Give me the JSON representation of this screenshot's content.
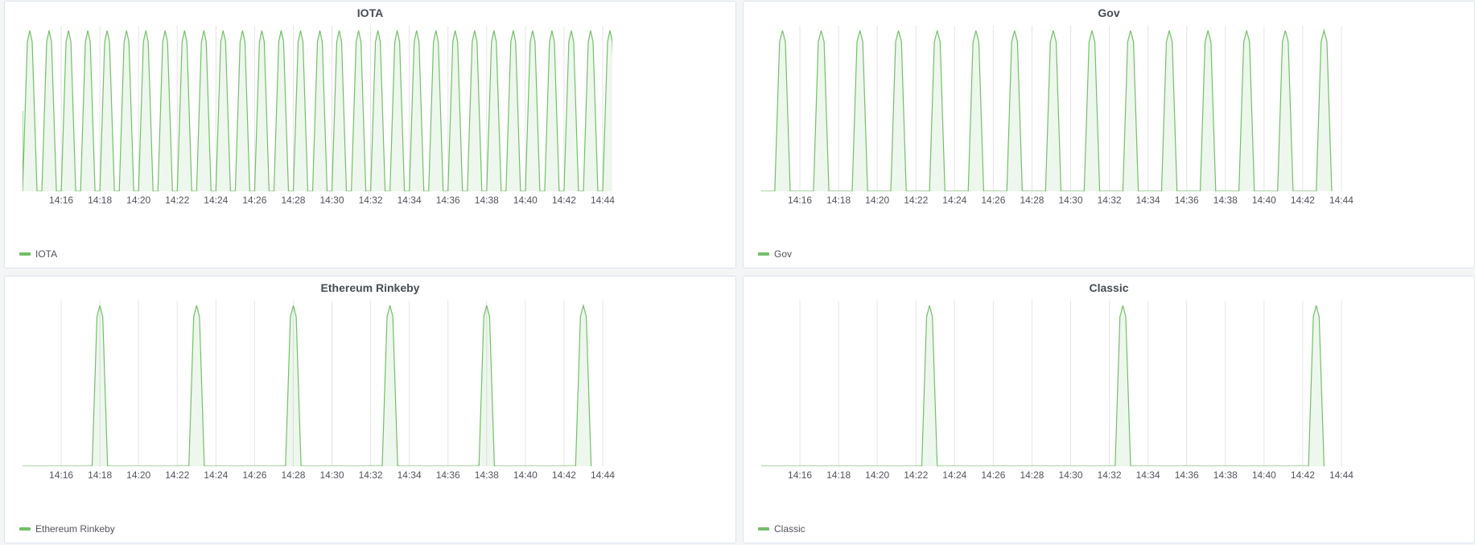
{
  "theme": {
    "series_color": "#73bf69",
    "fill_color": "#73bf69",
    "grid_color": "#e4e4e4"
  },
  "chart_data": [
    {
      "type": "area",
      "title": "IOTA",
      "legend": "IOTA",
      "legend_position": "bottom-left",
      "grid": true,
      "x_ticks": [
        "14:16",
        "14:18",
        "14:20",
        "14:22",
        "14:24",
        "14:26",
        "14:28",
        "14:30",
        "14:32",
        "14:34",
        "14:36",
        "14:38",
        "14:40",
        "14:42",
        "14:44"
      ],
      "xlim_minutes": [
        14.5,
        44.5
      ],
      "pulse": {
        "first_rise_minute": 14.0,
        "period_minutes": 1.0,
        "plateau_minutes": 0.25,
        "ramp_minutes": 0.25,
        "initial_level": 0.5
      },
      "ylim": [
        0,
        1
      ]
    },
    {
      "type": "area",
      "title": "Gov",
      "legend": "Gov",
      "legend_position": "bottom-left",
      "grid": true,
      "x_ticks": [
        "14:16",
        "14:18",
        "14:20",
        "14:22",
        "14:24",
        "14:26",
        "14:28",
        "14:30",
        "14:32",
        "14:34",
        "14:36",
        "14:38",
        "14:40",
        "14:42",
        "14:44"
      ],
      "xlim_minutes": [
        14.5,
        44.5
      ],
      "pulse": {
        "first_rise_minute": 14.7,
        "period_minutes": 2.0,
        "plateau_minutes": 0.3,
        "ramp_minutes": 0.25,
        "initial_level": 0
      },
      "ylim": [
        0,
        1
      ]
    },
    {
      "type": "area",
      "title": "Ethereum Rinkeby",
      "legend": "Ethereum Rinkeby",
      "legend_position": "bottom-left",
      "grid": true,
      "x_ticks": [
        "14:16",
        "14:18",
        "14:20",
        "14:22",
        "14:24",
        "14:26",
        "14:28",
        "14:30",
        "14:32",
        "14:34",
        "14:36",
        "14:38",
        "14:40",
        "14:42",
        "14:44"
      ],
      "xlim_minutes": [
        14.5,
        44.5
      ],
      "pulse": {
        "first_rise_minute": 17.6,
        "period_minutes": 5.0,
        "plateau_minutes": 0.3,
        "ramp_minutes": 0.25,
        "initial_level": 0
      },
      "ylim": [
        0,
        1
      ]
    },
    {
      "type": "area",
      "title": "Classic",
      "legend": "Classic",
      "legend_position": "bottom-left",
      "grid": true,
      "x_ticks": [
        "14:16",
        "14:18",
        "14:20",
        "14:22",
        "14:24",
        "14:26",
        "14:28",
        "14:30",
        "14:32",
        "14:34",
        "14:36",
        "14:38",
        "14:40",
        "14:42",
        "14:44"
      ],
      "xlim_minutes": [
        14.5,
        44.5
      ],
      "pulse": {
        "first_rise_minute": 22.3,
        "period_minutes": 10.0,
        "plateau_minutes": 0.3,
        "ramp_minutes": 0.25,
        "initial_level": 0
      },
      "ylim": [
        0,
        1
      ]
    }
  ]
}
